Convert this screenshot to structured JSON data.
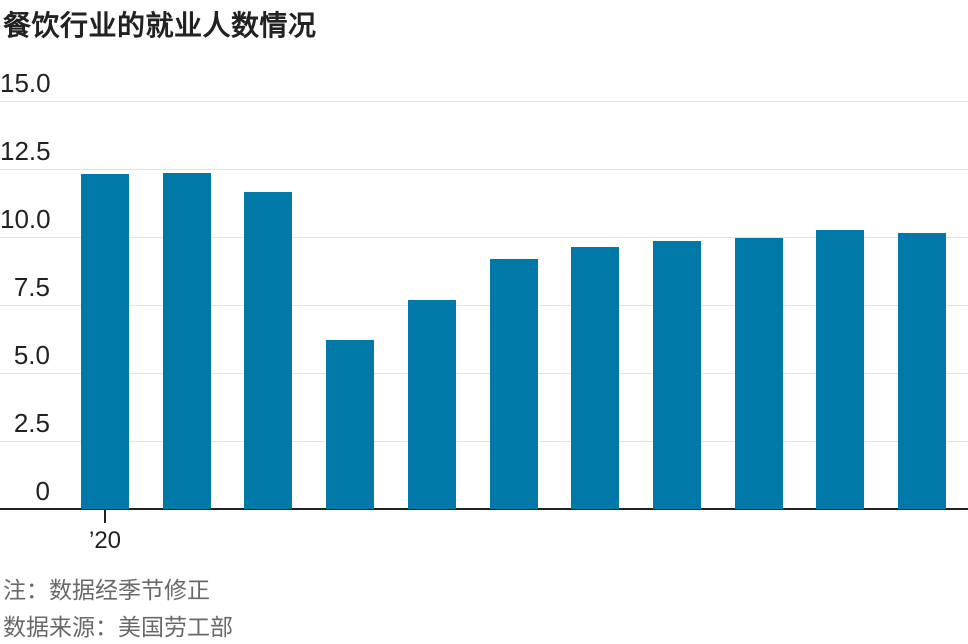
{
  "header": {
    "title": "餐饮行业的就业人数情况"
  },
  "footer": {
    "note": "注：数据经季节修正",
    "source": "数据来源：美国劳工部"
  },
  "chart_data": {
    "type": "bar",
    "title": "餐饮行业的就业人数情况",
    "values": [
      12.3,
      12.35,
      11.65,
      6.2,
      7.7,
      9.2,
      9.65,
      9.85,
      9.95,
      10.25,
      10.15
    ],
    "categories": [],
    "x_axis": {
      "tick_labels": [
        {
          "bar_index": 0,
          "label": "’20"
        }
      ]
    },
    "y_axis": {
      "ticks": [
        15.0,
        12.5,
        10.0,
        7.5,
        5.0,
        2.5,
        0
      ],
      "tick_labels": [
        "15.0",
        "12.5",
        "10.0",
        "7.5",
        "5.0",
        "2.5",
        "0"
      ],
      "range": [
        0,
        15
      ],
      "label": ""
    },
    "grid": true,
    "legend": false,
    "annotations": {
      "note": "注：数据经季节修正",
      "source": "数据来源：美国劳工部"
    }
  },
  "colors": {
    "bar": "#0079a8",
    "grid": "#e3e3e3",
    "axis": "#222222",
    "text": "#222222",
    "note_text": "#696969"
  }
}
